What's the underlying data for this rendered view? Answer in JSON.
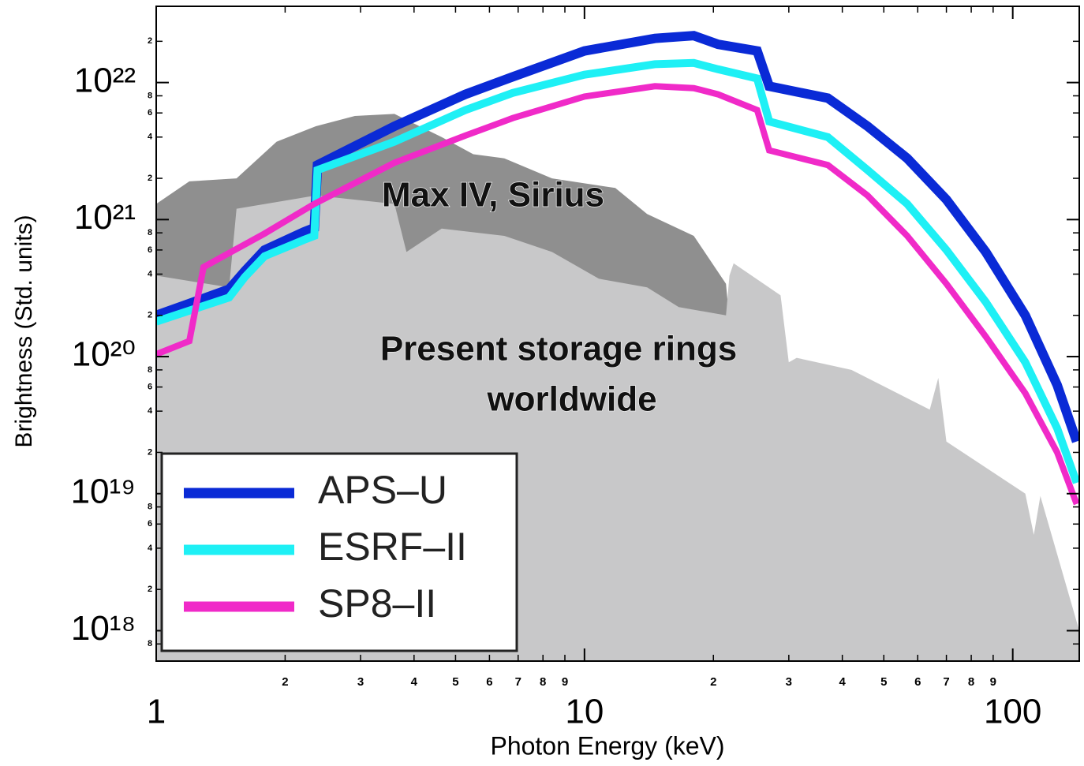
{
  "chart_data": {
    "type": "line",
    "xlabel": "Photon Energy (keV)",
    "ylabel": "Brightness (Std. units)",
    "log_x": true,
    "log_y": true,
    "xlim": [
      1,
      143
    ],
    "ylim": [
      6e+17,
      3.6e+22
    ],
    "xticks": [
      1,
      10,
      100
    ],
    "xminor_ticks": [
      2,
      3,
      4,
      5,
      6,
      7,
      8,
      9,
      {
        "value": 20,
        "label": "2"
      },
      {
        "value": 30,
        "label": "3"
      },
      {
        "value": 40,
        "label": "4"
      },
      {
        "value": 50,
        "label": "5"
      },
      {
        "value": 60,
        "label": "6"
      },
      {
        "value": 70,
        "label": "7"
      },
      {
        "value": 80,
        "label": "8"
      },
      {
        "value": 90,
        "label": "9"
      }
    ],
    "yticks": [
      {
        "value": 1e+18,
        "label": "10¹⁸"
      },
      {
        "value": 1e+19,
        "label": "10¹⁹"
      },
      {
        "value": 1e+20,
        "label": "10²⁰"
      },
      {
        "value": 1e+21,
        "label": "10²¹"
      },
      {
        "value": 1e+22,
        "label": "10²²"
      }
    ],
    "yminor_ticks": [
      {
        "value": 8e+17,
        "label": "8"
      },
      {
        "value": 2e+18,
        "label": "2"
      },
      {
        "value": 4e+18,
        "label": "4"
      },
      {
        "value": 6e+18,
        "label": "6"
      },
      {
        "value": 8e+18,
        "label": "8"
      },
      {
        "value": 2e+19,
        "label": "2"
      },
      {
        "value": 4e+19,
        "label": "4"
      },
      {
        "value": 6e+19,
        "label": "6"
      },
      {
        "value": 8e+19,
        "label": "8"
      },
      {
        "value": 2e+20,
        "label": "2"
      },
      {
        "value": 4e+20,
        "label": "4"
      },
      {
        "value": 6e+20,
        "label": "6"
      },
      {
        "value": 8e+20,
        "label": "8"
      },
      {
        "value": 2e+21,
        "label": "2"
      },
      {
        "value": 4e+21,
        "label": "4"
      },
      {
        "value": 6e+21,
        "label": "6"
      },
      {
        "value": 8e+21,
        "label": "8"
      },
      {
        "value": 2e+22,
        "label": "2"
      }
    ],
    "legend": "lower left",
    "areas": [
      {
        "label_lines": [
          "Max IV, Sirius"
        ],
        "color": "#8f8f8f",
        "x": [
          1,
          1.195,
          1.54,
          1.91,
          2.36,
          2.91,
          3.6,
          4.64,
          5.5,
          6.5,
          8.4,
          11.8,
          14.0,
          18.0,
          21.4,
          21.8
        ],
        "values": [
          1.3e+21,
          1.9e+21,
          2e+21,
          3.7e+21,
          4.8e+21,
          5.7e+21,
          5.9e+21,
          4e+21,
          3e+21,
          2.8e+21,
          2e+21,
          1.7e+21,
          1.1e+21,
          7.6e+20,
          3.4e+20,
          1.8e+20
        ]
      },
      {
        "label_lines": [
          "Present storage rings",
          "worldwide"
        ],
        "color": "#c8c8c9",
        "x": [
          1,
          1.48,
          1.54,
          2.36,
          3.6,
          3.84,
          4.64,
          6.5,
          8.4,
          10.8,
          14.0,
          16.6,
          21.4,
          21.8,
          22.3,
          28.7,
          30.0,
          31.3,
          42,
          64,
          67,
          70,
          107,
          112,
          116,
          143
        ],
        "values": [
          3.9e+20,
          3.2e+20,
          1.2e+21,
          1.5e+21,
          1.3e+21,
          5.8e+20,
          8.6e+20,
          7.6e+20,
          5.8e+20,
          3.7e+20,
          3.2e+20,
          2.3e+20,
          2e+20,
          3.9e+20,
          4.8e+20,
          2.8e+20,
          9.1e+19,
          9.8e+19,
          8e+19,
          4.1e+19,
          7e+19,
          2.4e+19,
          1e+19,
          5e+18,
          9.6e+18,
          1e+18
        ]
      }
    ],
    "series": [
      {
        "name": "APS–U",
        "color": "#0a2ad6",
        "width": 12,
        "x": [
          1,
          1.48,
          1.61,
          1.79,
          2.21,
          2.34,
          2.38,
          3.6,
          5.27,
          6.8,
          10,
          14.6,
          18,
          20.5,
          25.3,
          27,
          37,
          45.8,
          56.7,
          70,
          86.5,
          107,
          127,
          141
        ],
        "values": [
          2e+20,
          3.1e+20,
          4.2e+20,
          6e+20,
          8.1e+20,
          8.7e+20,
          2.5e+21,
          4.8e+21,
          8.2e+21,
          1.1e+22,
          1.7e+22,
          2.1e+22,
          2.2e+22,
          1.9e+22,
          1.7e+22,
          9.4e+21,
          7.7e+21,
          4.8e+21,
          2.8e+21,
          1.4e+21,
          5.8e+20,
          2e+20,
          6.2e+19,
          2.4e+19
        ]
      },
      {
        "name": "ESRF–II",
        "color": "#1ef0f5",
        "width": 10,
        "x": [
          1,
          1.48,
          1.61,
          1.79,
          2.21,
          2.34,
          2.38,
          3.6,
          5.27,
          6.8,
          10,
          14.6,
          18,
          20.5,
          25.3,
          27,
          37,
          45.8,
          56.7,
          70,
          86.5,
          107,
          127,
          141
        ],
        "values": [
          1.8e+20,
          2.7e+20,
          3.8e+20,
          5.4e+20,
          7.1e+20,
          7.6e+20,
          2.3e+21,
          3.7e+21,
          6.3e+21,
          8.4e+21,
          1.14e+22,
          1.36e+22,
          1.39e+22,
          1.25e+22,
          1.07e+22,
          5.2e+21,
          4e+21,
          2.3e+21,
          1.3e+21,
          6e+20,
          2.5e+20,
          9.1e+19,
          3e+19,
          1.2e+19
        ]
      },
      {
        "name": "SP8–II",
        "color": "#f02ac8",
        "width": 8,
        "x": [
          1,
          1.195,
          1.29,
          1.48,
          1.79,
          2.34,
          3.6,
          5.27,
          6.8,
          10,
          14.6,
          18,
          20.5,
          25.3,
          27,
          37,
          45.8,
          56.7,
          70,
          86.5,
          107,
          127,
          141
        ],
        "values": [
          1.04e+20,
          1.3e+20,
          4.5e+20,
          5.7e+20,
          7.9e+20,
          1.3e+21,
          2.6e+21,
          4.1e+21,
          5.5e+21,
          7.9e+21,
          9.4e+21,
          9.1e+21,
          8.2e+21,
          6.3e+21,
          3.2e+21,
          2.5e+21,
          1.5e+21,
          7.6e+20,
          3.4e+20,
          1.4e+20,
          5.4e+19,
          2e+19,
          8.4e+18
        ]
      }
    ]
  }
}
